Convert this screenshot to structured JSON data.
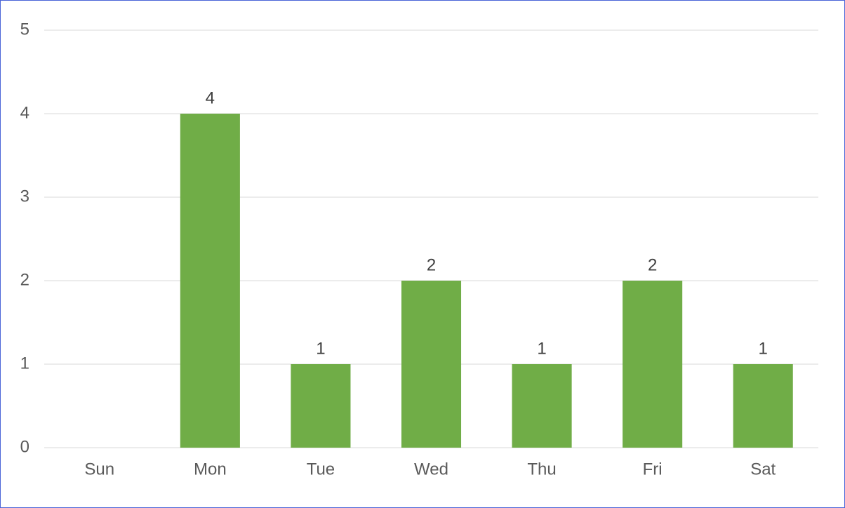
{
  "chart_data": {
    "type": "bar",
    "categories": [
      "Sun",
      "Mon",
      "Tue",
      "Wed",
      "Thu",
      "Fri",
      "Sat"
    ],
    "values": [
      null,
      4,
      1,
      2,
      1,
      2,
      1
    ],
    "color": "#70ad47",
    "ylim": [
      0,
      5
    ],
    "yticks": [
      0,
      1,
      2,
      3,
      4,
      5
    ],
    "grid": true,
    "data_labels": true
  }
}
